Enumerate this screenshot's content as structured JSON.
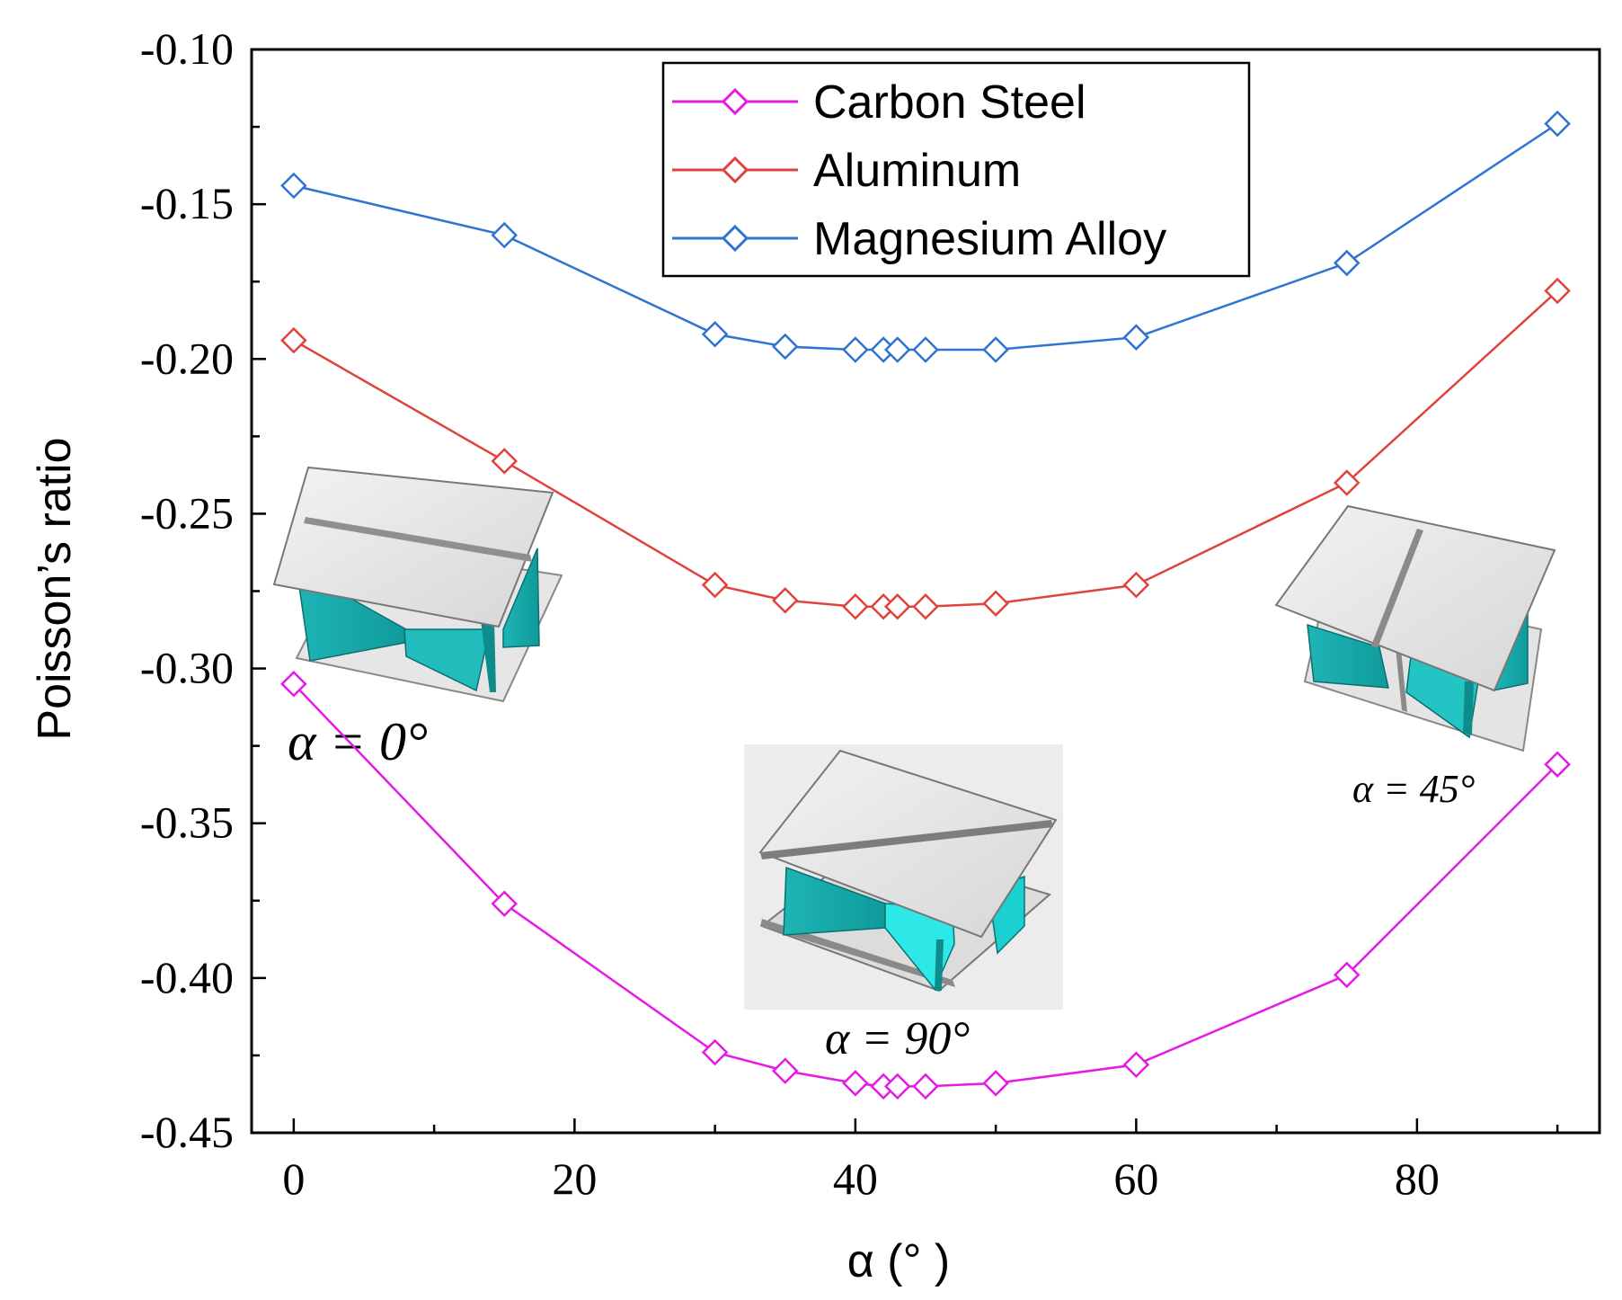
{
  "chart_data": {
    "type": "line",
    "title": "",
    "xlabel": "α (°  )",
    "ylabel": "Poisson’s ratio",
    "xlim": [
      -3,
      93
    ],
    "ylim": [
      -0.45,
      -0.1
    ],
    "x_ticks": [
      0,
      20,
      40,
      60,
      80
    ],
    "x_tick_labels": [
      "0",
      "20",
      "40",
      "60",
      "80"
    ],
    "y_ticks": [
      -0.1,
      -0.15,
      -0.2,
      -0.25,
      -0.3,
      -0.35,
      -0.4,
      -0.45
    ],
    "y_tick_labels": [
      "-0.10",
      "-0.15",
      "-0.20",
      "-0.25",
      "-0.30",
      "-0.35",
      "-0.40",
      "-0.45"
    ],
    "x": [
      0,
      15,
      30,
      35,
      40,
      42,
      43,
      45,
      50,
      60,
      75,
      90
    ],
    "series": [
      {
        "name": "Carbon Steel",
        "color": "#e619e6",
        "marker": "diamond",
        "values": [
          -0.305,
          -0.376,
          -0.424,
          -0.43,
          -0.434,
          -0.435,
          -0.435,
          -0.435,
          -0.434,
          -0.428,
          -0.399,
          -0.331
        ]
      },
      {
        "name": "Aluminum",
        "color": "#e0423c",
        "marker": "diamond",
        "values": [
          -0.194,
          -0.233,
          -0.273,
          -0.278,
          -0.28,
          -0.28,
          -0.28,
          -0.28,
          -0.279,
          -0.273,
          -0.24,
          -0.178
        ]
      },
      {
        "name": "Magnesium Alloy",
        "color": "#2f74d0",
        "marker": "diamond",
        "values": [
          -0.144,
          -0.16,
          -0.192,
          -0.196,
          -0.197,
          -0.197,
          -0.197,
          -0.197,
          -0.197,
          -0.193,
          -0.169,
          -0.124
        ]
      }
    ],
    "legend_position": "top-center",
    "annotations": [
      "α = 0°",
      "α = 45°",
      "α = 90°"
    ]
  }
}
